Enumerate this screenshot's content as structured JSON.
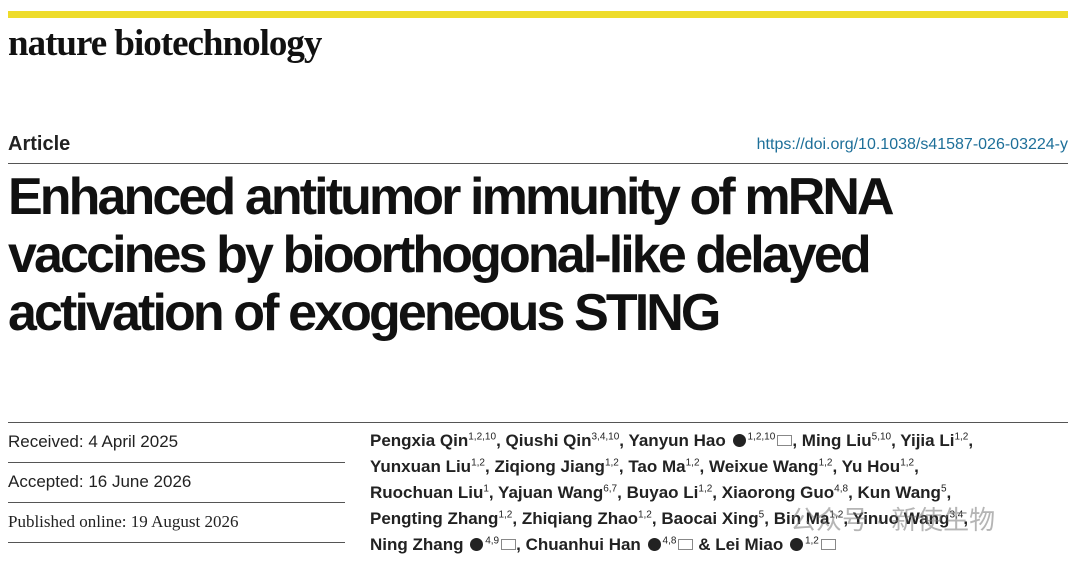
{
  "header": {
    "journal": "nature biotechnology",
    "article_type": "Article",
    "doi": "https://doi.org/10.1038/s41587-026-03224-y"
  },
  "title_lines": [
    "Enhanced antitumor immunity of mRNA",
    "vaccines by bioorthogonal-like delayed",
    "activation of exogeneous STING"
  ],
  "dates": [
    "Received: 4 April 2025",
    "Accepted: 16 June 2026",
    "Published online: 19 August 2026"
  ],
  "author_lines": [
    [
      {
        "name": "Pengxia Qin",
        "affiliations": "1,2,10",
        "sep": ","
      },
      {
        "name": "Qiushi Qin",
        "affiliations": "3,4,10",
        "sep": ","
      },
      {
        "name": "Yanyun Hao",
        "orcid": true,
        "affiliations": "1,2,10",
        "email": true,
        "sep": ","
      },
      {
        "name": "Ming Liu",
        "affiliations": "5,10",
        "sep": ","
      },
      {
        "name": "Yijia Li",
        "affiliations": "1,2",
        "sep": ","
      }
    ],
    [
      {
        "name": "Yunxuan Liu",
        "affiliations": "1,2",
        "sep": ","
      },
      {
        "name": "Ziqiong Jiang",
        "affiliations": "1,2",
        "sep": ","
      },
      {
        "name": "Tao Ma",
        "affiliations": "1,2",
        "sep": ","
      },
      {
        "name": "Weixue Wang",
        "affiliations": "1,2",
        "sep": ","
      },
      {
        "name": "Yu Hou",
        "affiliations": "1,2",
        "sep": ","
      }
    ],
    [
      {
        "name": "Ruochuan Liu",
        "affiliations": "1",
        "sep": ","
      },
      {
        "name": "Yajuan Wang",
        "affiliations": "6,7",
        "sep": ","
      },
      {
        "name": "Buyao Li",
        "affiliations": "1,2",
        "sep": ","
      },
      {
        "name": "Xiaorong Guo",
        "affiliations": "4,8",
        "sep": ","
      },
      {
        "name": "Kun Wang",
        "affiliations": "5",
        "sep": ","
      }
    ],
    [
      {
        "name": "Pengting Zhang",
        "affiliations": "1,2",
        "sep": ","
      },
      {
        "name": "Zhiqiang Zhao",
        "affiliations": "1,2",
        "sep": ","
      },
      {
        "name": "Baocai Xing",
        "affiliations": "5",
        "sep": ","
      },
      {
        "name": "Bin Ma",
        "affiliations": "1,2",
        "sep": ","
      },
      {
        "name": "Yinuo Wang",
        "affiliations": "3,4",
        "sep": ","
      }
    ],
    [
      {
        "name": "Ning Zhang",
        "orcid": true,
        "affiliations": "4,9",
        "email": true,
        "sep": ","
      },
      {
        "name": "Chuanhui Han",
        "orcid": true,
        "affiliations": "4,8",
        "email": true,
        "sep": "&"
      },
      {
        "name": "Lei Miao",
        "orcid": true,
        "affiliations": "1,2",
        "email": true
      }
    ]
  ],
  "watermark": "公众号 · 新使生物"
}
